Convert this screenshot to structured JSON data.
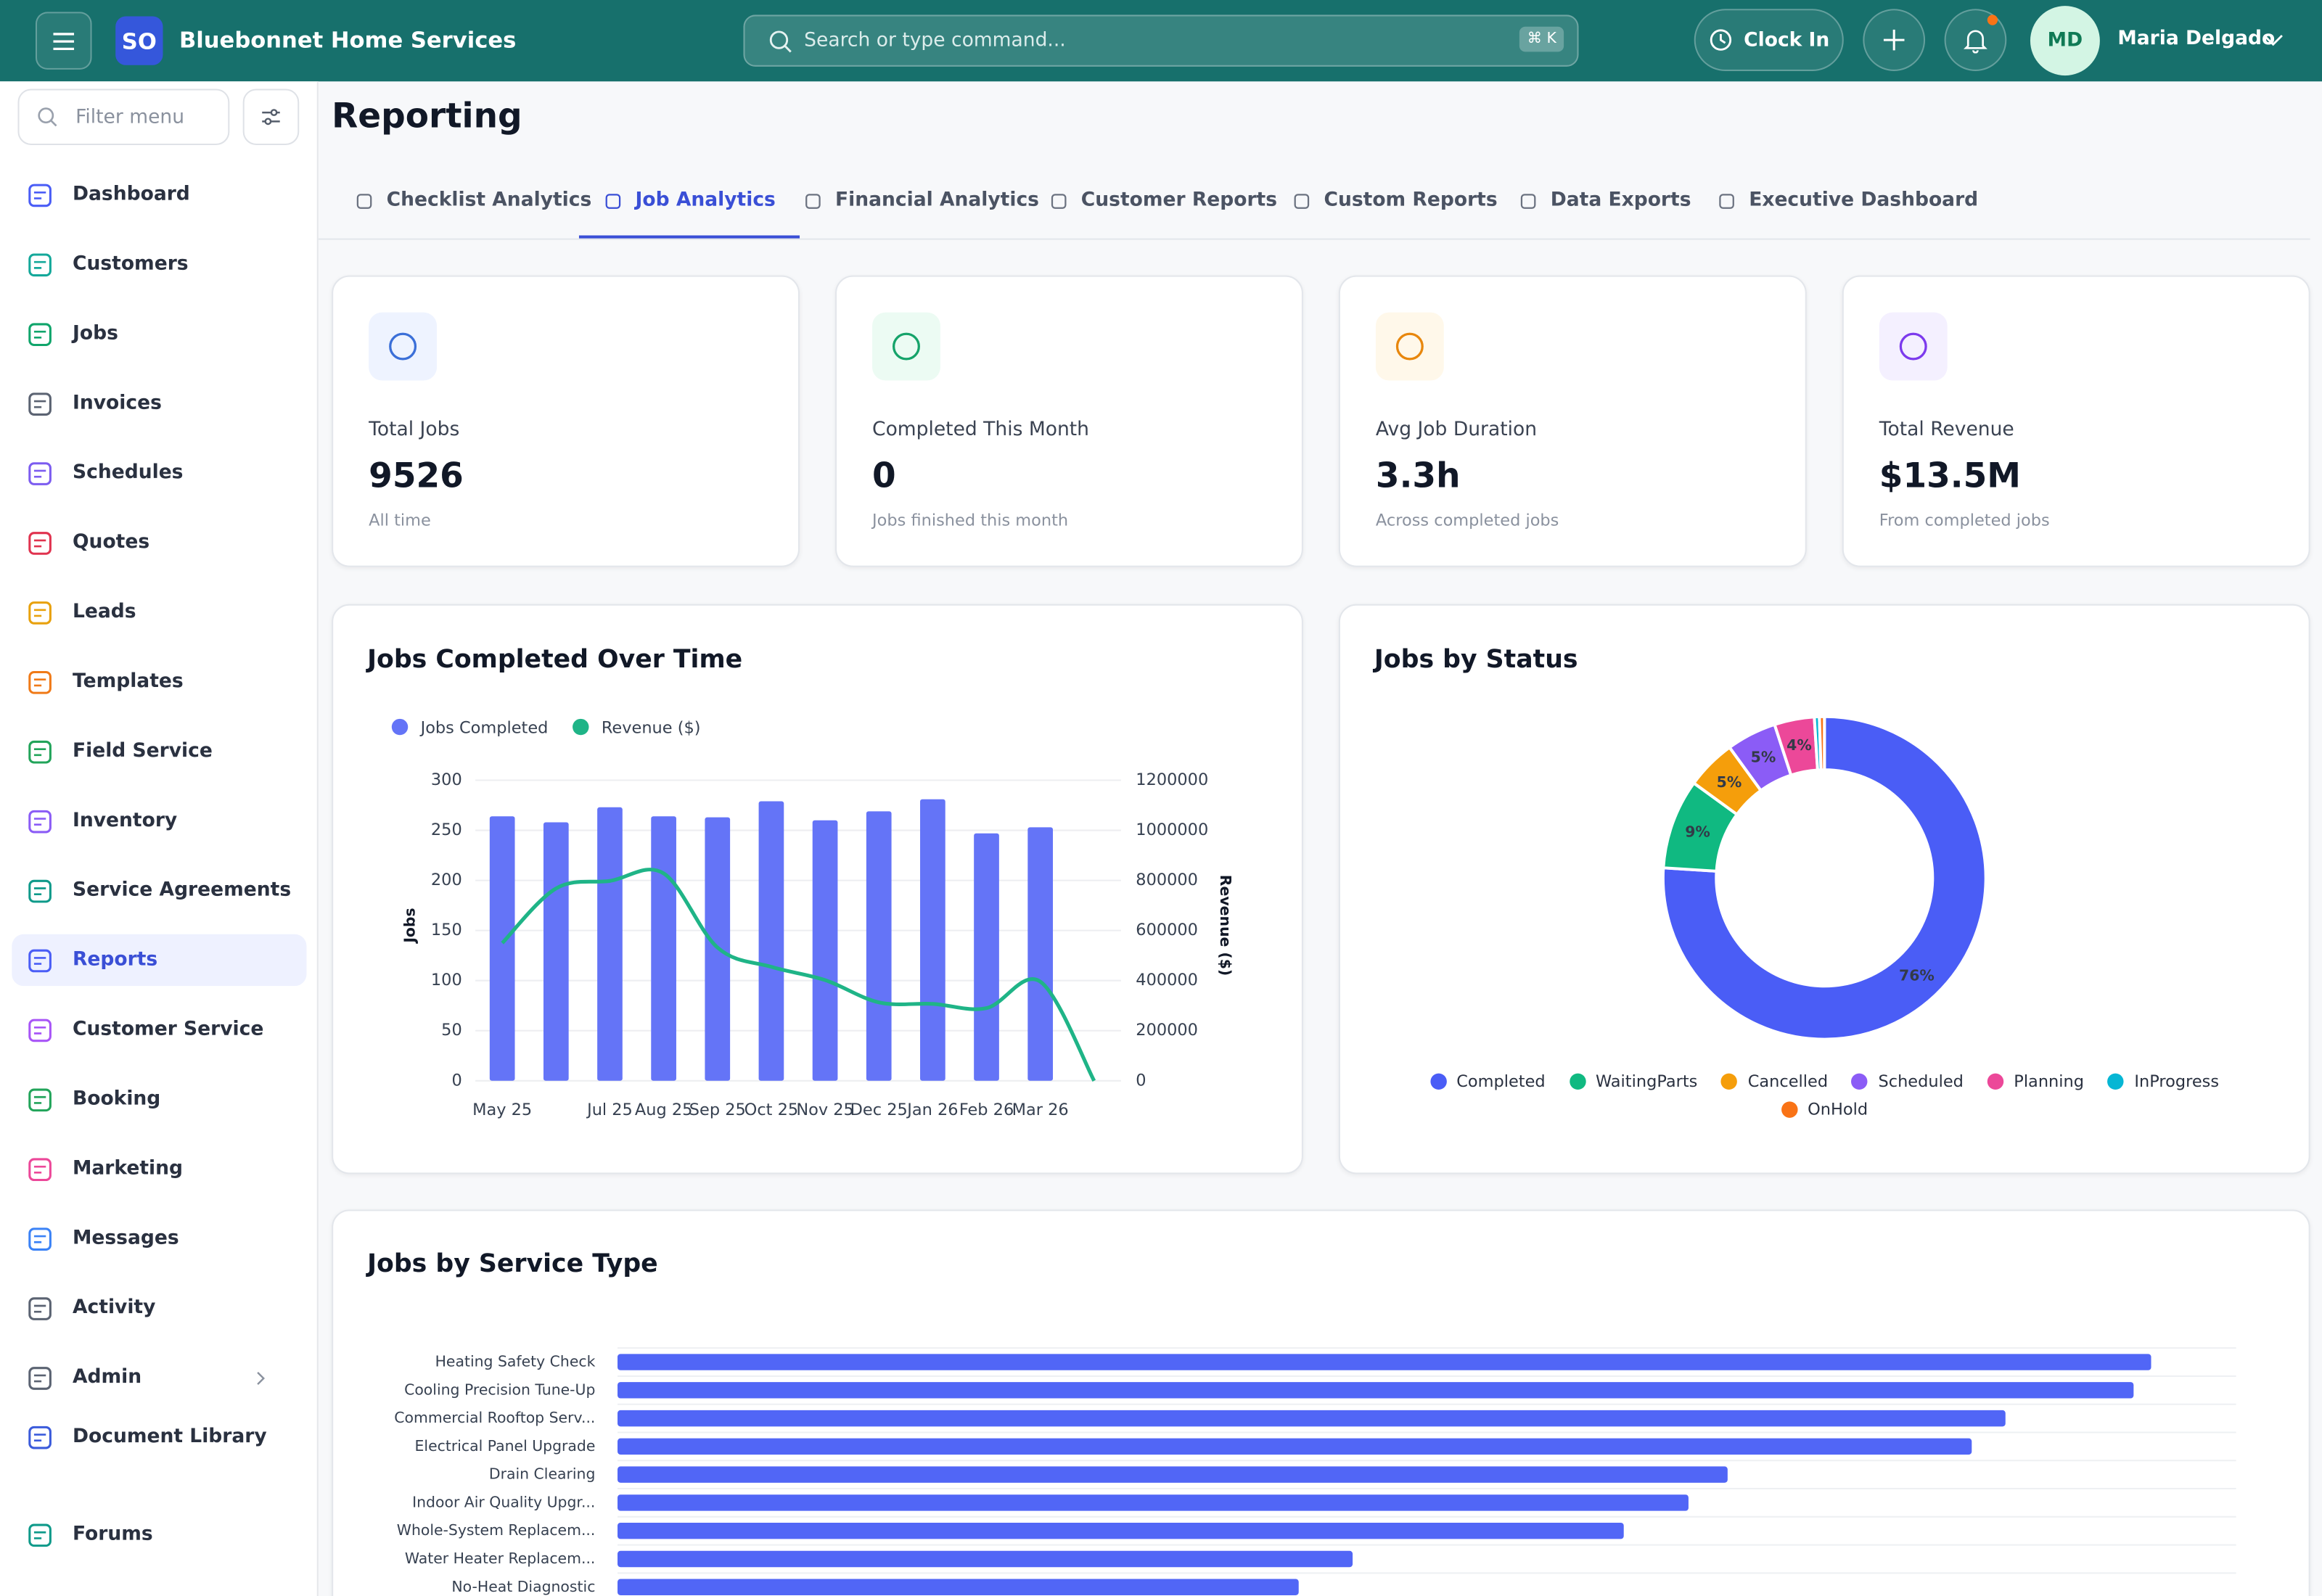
{
  "header": {
    "logo": "SO",
    "app_name": "Bluebonnet Home Services",
    "search_placeholder": "Search or type command...",
    "shortcut": "⌘ K",
    "clock_in": "Clock In",
    "avatar": "MD",
    "user_name": "Maria Delgado"
  },
  "sidebar": {
    "filter_placeholder": "Filter menu",
    "active_item": "Reports",
    "items": [
      "Dashboard",
      "Customers",
      "Jobs",
      "Invoices",
      "Schedules",
      "Quotes",
      "Leads",
      "Templates",
      "Field Service",
      "Inventory",
      "Service Agreements",
      "Reports",
      "Customer Service",
      "Booking",
      "Marketing",
      "Messages",
      "Activity",
      "Admin",
      "Document Library",
      "Forums"
    ]
  },
  "page_title": "Reporting",
  "tabs": [
    "Checklist Analytics",
    "Job Analytics",
    "Financial Analytics",
    "Customer Reports",
    "Custom Reports",
    "Data Exports",
    "Executive Dashboard"
  ],
  "active_tab": "Job Analytics",
  "kpis": [
    {
      "label": "Total Jobs",
      "value": "9526",
      "note": "All time"
    },
    {
      "label": "Completed This Month",
      "value": "0",
      "note": "Jobs finished this month"
    },
    {
      "label": "Avg Job Duration",
      "value": "3.3h",
      "note": "Across completed jobs"
    },
    {
      "label": "Total Revenue",
      "value": "$13.5M",
      "note": "From completed jobs"
    }
  ],
  "chart_data": [
    {
      "type": "combo",
      "title": "Jobs Completed Over Time",
      "categories": [
        "May 25",
        null,
        "Jul 25",
        "Aug 25",
        "Sep 25",
        "Oct 25",
        "Nov 25",
        "Dec 25",
        "Jan 26",
        "Feb 26",
        "Mar 26",
        null
      ],
      "series": [
        {
          "name": "Jobs Completed",
          "kind": "bar",
          "color": "#6474f7",
          "values": [
            264,
            258,
            273,
            264,
            263,
            279,
            260,
            269,
            281,
            247,
            253,
            0
          ]
        },
        {
          "name": "Revenue ($)",
          "kind": "line",
          "axis": "y2",
          "color": "#1fb487",
          "values": [
            550000,
            768000,
            798000,
            828000,
            532000,
            455000,
            402000,
            313000,
            307000,
            290000,
            396000,
            0
          ]
        }
      ],
      "y_label": "Jobs",
      "y2_label": "Revenue ($)",
      "ylim": [
        0,
        300
      ],
      "yticks": [
        0,
        50,
        100,
        150,
        200,
        250,
        300
      ],
      "y2lim": [
        0,
        1200000
      ],
      "y2ticks": [
        0,
        200000,
        400000,
        600000,
        800000,
        1000000,
        1200000
      ],
      "grid": true,
      "legend": "top-left"
    },
    {
      "type": "donut",
      "title": "Jobs by Status",
      "categories": [
        "Completed",
        "WaitingParts",
        "Cancelled",
        "Scheduled",
        "Planning",
        "InProgress",
        "OnHold"
      ],
      "values": [
        76,
        9,
        5,
        5,
        4,
        0.5,
        0.5
      ],
      "value_labels": [
        "76%",
        "9%",
        "5%",
        "5%",
        "4%",
        null,
        null
      ],
      "colors": [
        "#4a5df6",
        "#10b981",
        "#f59e0b",
        "#8b5cf6",
        "#ec4899",
        "#06b6d4",
        "#f97316"
      ],
      "legend": "bottom"
    },
    {
      "type": "hbar",
      "title": "Jobs by Service Type",
      "categories": [
        "Heating Safety Check",
        "Cooling Precision Tune-Up",
        "Commercial Rooftop Serv...",
        "Electrical Panel Upgrade",
        "Drain Clearing",
        "Indoor Air Quality Upgr...",
        "Whole-System Replacem...",
        "Water Heater Replacem...",
        "No-Heat Diagnostic"
      ],
      "values": [
        1137,
        1124,
        1029,
        1004,
        823,
        794,
        746,
        545,
        505
      ],
      "color": "#5166f6",
      "xlim": [
        0,
        1200
      ],
      "grid": true
    }
  ]
}
